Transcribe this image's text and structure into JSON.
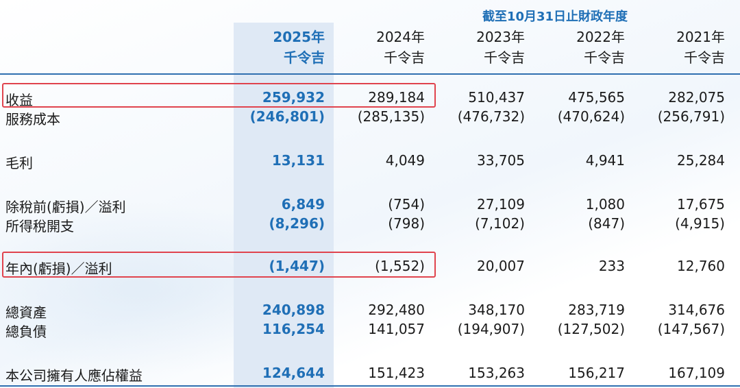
{
  "header": {
    "period": "截至10月31日止財政年度",
    "years": [
      "2025年",
      "2024年",
      "2023年",
      "2022年",
      "2021年"
    ],
    "unit": "千令吉"
  },
  "rows": [
    {
      "label": "收益",
      "values": [
        "259,932",
        "289,184",
        "510,437",
        "475,565",
        "282,075"
      ]
    },
    {
      "label": "服務成本",
      "values": [
        "(246,801)",
        "(285,135)",
        "(476,732)",
        "(470,624)",
        "(256,791)"
      ]
    },
    {
      "label": "毛利",
      "values": [
        "13,131",
        "4,049",
        "33,705",
        "4,941",
        "25,284"
      ]
    },
    {
      "label": "除稅前(虧損)／溢利",
      "values": [
        "6,849",
        "(754)",
        "27,109",
        "1,080",
        "17,675"
      ]
    },
    {
      "label": "所得稅開支",
      "values": [
        "(8,296)",
        "(798)",
        "(7,102)",
        "(847)",
        "(4,915)"
      ]
    },
    {
      "label": "年內(虧損)／溢利",
      "values": [
        "(1,447)",
        "(1,552)",
        "20,007",
        "233",
        "12,760"
      ]
    },
    {
      "label": "總資產",
      "values": [
        "240,898",
        "292,480",
        "348,170",
        "283,719",
        "314,676"
      ]
    },
    {
      "label": "總負債",
      "values": [
        "116,254",
        "141,057",
        "(194,907)",
        "(127,502)",
        "(147,567)"
      ]
    },
    {
      "label": "本公司擁有人應佔權益",
      "values": [
        "124,644",
        "151,423",
        "153,263",
        "156,217",
        "167,109"
      ]
    }
  ],
  "colors": {
    "accent": "#1f6fb6",
    "highlight_column": "#dfe9f5",
    "callout": "#e0434d"
  }
}
